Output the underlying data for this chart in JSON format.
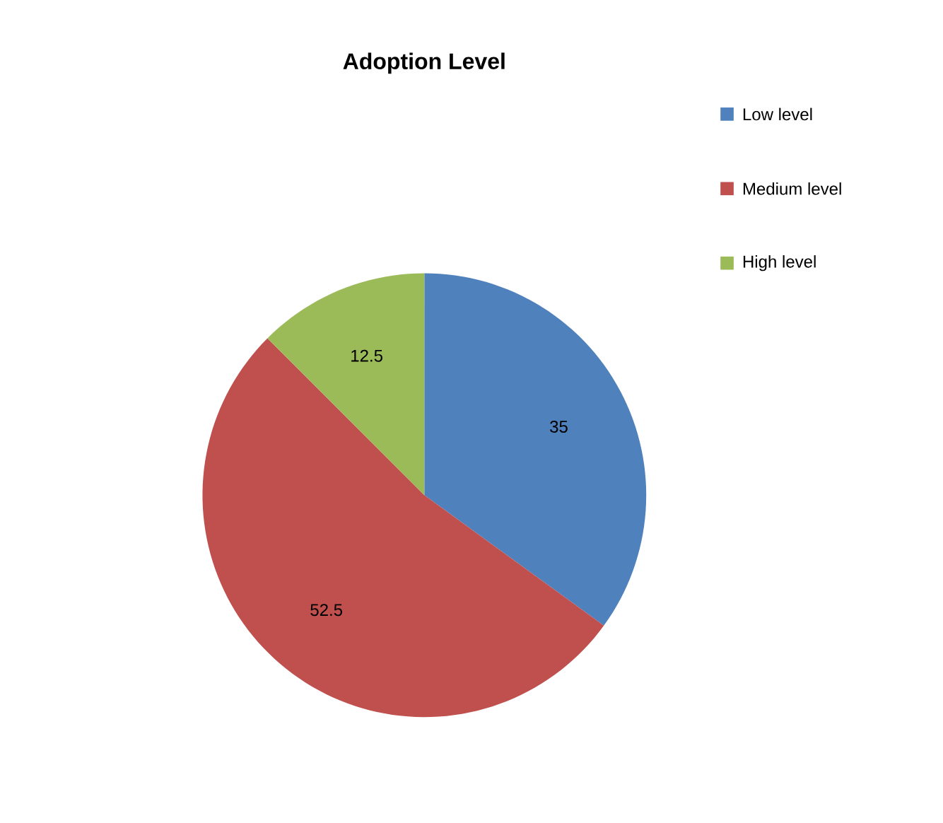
{
  "chart_data": {
    "type": "pie",
    "title": "Adoption Level",
    "categories": [
      "Low level",
      "Medium level",
      "High level"
    ],
    "values": [
      35,
      52.5,
      12.5
    ],
    "colors": [
      "#4f81bd",
      "#c0504d",
      "#9bbb59"
    ],
    "data_labels": true,
    "legend": "top right"
  }
}
